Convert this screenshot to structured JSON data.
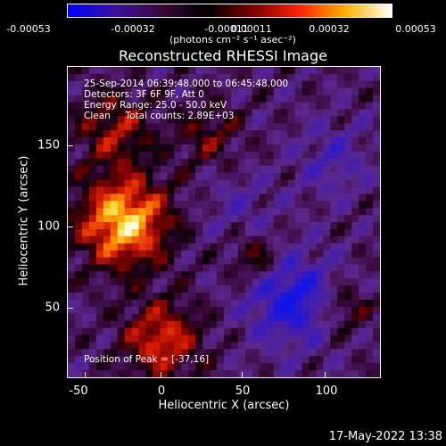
{
  "colorbar": {
    "ticks": [
      "-0.00053",
      "-0.00032",
      "-0.00011",
      "0.00011",
      "0.00032",
      "0.00053"
    ],
    "units": "(photons cm⁻² s⁻¹ asec⁻²)",
    "colors": [
      "#0000ff",
      "#3a10a0",
      "#3a0a3a",
      "#000000",
      "#7a0000",
      "#ff2000",
      "#ffb000",
      "#ffffff"
    ]
  },
  "title": "Reconstructed RHESSI Image",
  "annotations": {
    "time_range": "25-Sep-2014 06:39:48.000 to 06:45:48.000",
    "detectors": "Detectors: 3F 6F 9F, Att 0",
    "energy_range": "Energy Range: 25.0 - 50.0 keV",
    "clean_counts": "Clean     Total counts: 2.89E+03",
    "peak": "Position of Peak = [-37,16]"
  },
  "axes": {
    "xlabel": "Heliocentric X (arcsec)",
    "ylabel": "Heliocentric Y (arcsec)",
    "xticks": [
      "-50",
      "0",
      "50",
      "100"
    ],
    "yticks": [
      "150",
      "100",
      "50"
    ],
    "xrange": [
      -57,
      132
    ],
    "yrange": [
      5,
      195
    ]
  },
  "footer": "17-May-2022 13:38"
}
